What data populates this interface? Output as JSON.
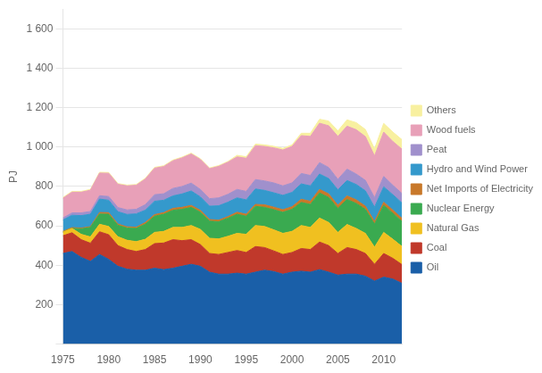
{
  "chart_data": {
    "type": "area",
    "stacked": true,
    "x": [
      1975,
      1976,
      1977,
      1978,
      1979,
      1980,
      1981,
      1982,
      1983,
      1984,
      1985,
      1986,
      1987,
      1988,
      1989,
      1990,
      1991,
      1992,
      1993,
      1994,
      1995,
      1996,
      1997,
      1998,
      1999,
      2000,
      2001,
      2002,
      2003,
      2004,
      2005,
      2006,
      2007,
      2008,
      2009,
      2010,
      2011,
      2012
    ],
    "series": [
      {
        "name": "Oil",
        "color": "#1a5fa8",
        "values": [
          460,
          470,
          440,
          420,
          455,
          430,
          395,
          380,
          375,
          375,
          385,
          378,
          385,
          395,
          405,
          395,
          365,
          355,
          355,
          360,
          355,
          365,
          375,
          368,
          355,
          365,
          370,
          365,
          378,
          365,
          350,
          355,
          355,
          345,
          320,
          340,
          330,
          308
        ]
      },
      {
        "name": "Coal",
        "color": "#c0392b",
        "values": [
          90,
          95,
          90,
          92,
          115,
          125,
          105,
          100,
          95,
          105,
          125,
          135,
          145,
          130,
          125,
          110,
          95,
          100,
          110,
          115,
          110,
          130,
          115,
          105,
          100,
          100,
          115,
          115,
          140,
          135,
          110,
          135,
          125,
          115,
          85,
          120,
          105,
          95
        ]
      },
      {
        "name": "Natural Gas",
        "color": "#f0c020",
        "values": [
          18,
          22,
          27,
          32,
          38,
          42,
          45,
          47,
          50,
          52,
          57,
          59,
          62,
          67,
          72,
          77,
          77,
          79,
          82,
          87,
          92,
          107,
          107,
          107,
          107,
          107,
          117,
          112,
          122,
          117,
          107,
          117,
          107,
          102,
          87,
          107,
          97,
          92
        ]
      },
      {
        "name": "Nuclear Energy",
        "color": "#3aaa50",
        "values": [
          0,
          0,
          28,
          48,
          52,
          62,
          58,
          62,
          67,
          77,
          82,
          87,
          87,
          92,
          92,
          87,
          87,
          87,
          92,
          97,
          92,
          97,
          97,
          102,
          107,
          112,
          117,
          117,
          127,
          127,
          122,
          127,
          127,
          122,
          117,
          137,
          132,
          127
        ]
      },
      {
        "name": "Net Imports\nof Electricity",
        "color": "#c8782a",
        "values": [
          4,
          4,
          4,
          4,
          8,
          8,
          6,
          6,
          6,
          8,
          8,
          8,
          10,
          10,
          10,
          10,
          8,
          8,
          8,
          10,
          10,
          10,
          13,
          13,
          13,
          13,
          16,
          16,
          18,
          18,
          16,
          18,
          18,
          16,
          13,
          16,
          16,
          16
        ]
      },
      {
        "name": "Hydro and\nWind Power",
        "color": "#3499cc",
        "values": [
          58,
          63,
          63,
          63,
          68,
          63,
          63,
          63,
          68,
          63,
          68,
          63,
          63,
          68,
          73,
          68,
          68,
          73,
          73,
          73,
          73,
          78,
          73,
          73,
          73,
          73,
          78,
          78,
          78,
          78,
          78,
          78,
          78,
          78,
          73,
          78,
          78,
          78
        ]
      },
      {
        "name": "Peat",
        "color": "#a090cc",
        "values": [
          10,
          12,
          14,
          14,
          17,
          19,
          21,
          23,
          23,
          28,
          33,
          33,
          38,
          38,
          40,
          38,
          38,
          40,
          40,
          43,
          43,
          48,
          48,
          50,
          48,
          48,
          53,
          53,
          58,
          56,
          53,
          58,
          53,
          53,
          48,
          53,
          48,
          48
        ]
      },
      {
        "name": "Wood fuels",
        "color": "#e8a0b8",
        "values": [
          100,
          105,
          105,
          108,
          115,
          118,
          118,
          122,
          122,
          130,
          135,
          138,
          140,
          145,
          148,
          152,
          152,
          160,
          163,
          165,
          168,
          172,
          175,
          178,
          182,
          185,
          192,
          198,
          200,
          212,
          218,
          218,
          225,
          222,
          212,
          225,
          222,
          225
        ]
      },
      {
        "name": "Others",
        "color": "#f8f0a0",
        "values": [
          4,
          4,
          4,
          4,
          4,
          4,
          4,
          4,
          4,
          4,
          4,
          4,
          4,
          4,
          4,
          4,
          4,
          4,
          4,
          8,
          8,
          8,
          8,
          8,
          8,
          8,
          12,
          16,
          20,
          24,
          28,
          32,
          36,
          36,
          36,
          44,
          48,
          48
        ]
      }
    ],
    "ylabel": "PJ",
    "xlim": [
      1975,
      2012
    ],
    "xticks": [
      1975,
      1980,
      1985,
      1990,
      1995,
      2000,
      2005,
      2010
    ],
    "ylim": [
      0,
      1700
    ],
    "yticks": [
      {
        "value": 0,
        "label": ""
      },
      200,
      400,
      600,
      800,
      {
        "value": 1000,
        "label": "1 000"
      },
      {
        "value": 1200,
        "label": "1 200"
      },
      {
        "value": 1400,
        "label": "1 400"
      },
      {
        "value": 1600,
        "label": "1 600"
      }
    ],
    "grid": "y",
    "legend": "right"
  }
}
